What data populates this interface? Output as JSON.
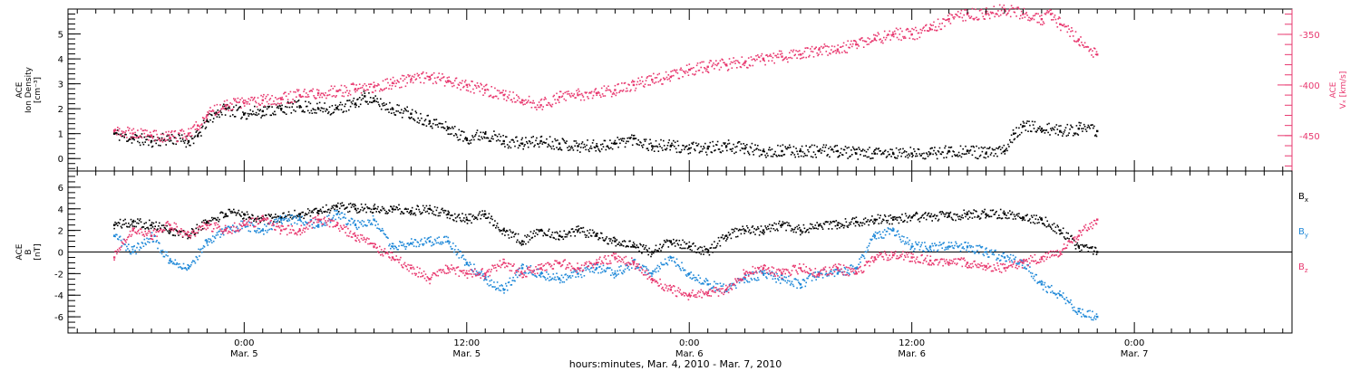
{
  "colors": {
    "density": "#000000",
    "vx": "#e8386f",
    "bx": "#000000",
    "by": "#1e88d8",
    "bz": "#e8386f",
    "axis": "#000000"
  },
  "chart_data": [
    {
      "type": "scatter",
      "ylabel_lines": [
        "ACE",
        "Ion Density",
        "[cm⁻³]"
      ],
      "ylim": [
        -0.5,
        6
      ],
      "yticks": [
        0,
        1,
        2,
        3,
        4,
        5
      ],
      "right_axis": {
        "label_lines": [
          "ACE",
          "Vₓ [km/s]"
        ],
        "ylim": [
          -325,
          -485
        ],
        "yticks": [
          -350,
          -400,
          -450
        ]
      },
      "series": [
        {
          "key": "density",
          "x": [
            -7.0,
            -6.0,
            -5.0,
            -4.0,
            -3.0,
            -2.5,
            -2.0,
            -1.5,
            -1.0,
            0.0,
            1.0,
            2.0,
            3.0,
            4.0,
            5.0,
            6.0,
            6.5,
            7.0,
            8.0,
            9.0,
            10.0,
            11.0,
            12.0,
            13.0,
            14.0,
            15.0,
            16.0,
            17.0,
            18.0,
            19.0,
            20.0,
            21.0,
            22.0,
            23.0,
            24.0,
            25.0,
            26.0,
            27.0,
            28.0,
            29.0,
            30.0,
            31.0,
            32.0,
            33.0,
            34.0,
            35.0,
            36.0,
            37.0,
            38.0,
            39.0,
            40.0,
            41.0,
            41.5,
            42.0,
            43.0,
            44.0,
            45.0,
            46.0
          ],
          "y": [
            1.0,
            0.8,
            0.7,
            0.8,
            0.7,
            0.9,
            1.5,
            1.8,
            2.0,
            1.8,
            1.9,
            2.0,
            2.1,
            2.0,
            2.0,
            2.2,
            2.5,
            2.3,
            2.0,
            1.8,
            1.5,
            1.2,
            0.8,
            1.0,
            0.7,
            0.6,
            0.7,
            0.6,
            0.5,
            0.5,
            0.6,
            0.8,
            0.5,
            0.5,
            0.4,
            0.4,
            0.5,
            0.4,
            0.3,
            0.3,
            0.3,
            0.3,
            0.3,
            0.2,
            0.2,
            0.2,
            0.2,
            0.2,
            0.3,
            0.3,
            0.2,
            0.3,
            1.0,
            1.3,
            1.2,
            1.1,
            1.2,
            1.1
          ]
        },
        {
          "key": "vx",
          "axis": "right",
          "x": [
            -7.0,
            -6.0,
            -5.0,
            -4.0,
            -3.0,
            -2.5,
            -2.0,
            -1.0,
            0.0,
            1.0,
            2.0,
            3.0,
            4.0,
            5.0,
            6.0,
            7.0,
            8.0,
            9.0,
            10.0,
            11.0,
            12.0,
            13.0,
            14.0,
            15.0,
            16.0,
            17.0,
            18.0,
            19.0,
            20.0,
            21.0,
            22.0,
            23.0,
            24.0,
            25.0,
            26.0,
            27.0,
            28.0,
            29.0,
            30.0,
            31.0,
            32.0,
            33.0,
            34.0,
            35.0,
            36.0,
            37.0,
            38.0,
            39.0,
            40.0,
            41.0,
            42.0,
            43.0,
            43.5,
            44.0,
            45.0,
            46.0
          ],
          "y": [
            -445,
            -448,
            -450,
            -452,
            -448,
            -440,
            -430,
            -420,
            -418,
            -415,
            -414,
            -410,
            -408,
            -406,
            -404,
            -402,
            -398,
            -395,
            -392,
            -396,
            -400,
            -405,
            -410,
            -415,
            -420,
            -412,
            -410,
            -408,
            -405,
            -400,
            -395,
            -392,
            -385,
            -382,
            -380,
            -378,
            -375,
            -372,
            -370,
            -365,
            -365,
            -360,
            -355,
            -350,
            -350,
            -345,
            -335,
            -330,
            -330,
            -325,
            -330,
            -335,
            -330,
            -340,
            -355,
            -370
          ]
        }
      ]
    },
    {
      "type": "scatter",
      "ylabel_lines": [
        "ACE",
        "B",
        "[nT]"
      ],
      "ylim": [
        -7.5,
        7.5
      ],
      "yticks": [
        6,
        4,
        2,
        0,
        -2,
        -4,
        -6
      ],
      "legend": [
        "Bₓ",
        "Bᵧ",
        "Bₓ"
      ],
      "legend_labels": [
        {
          "base": "B",
          "sub": "x"
        },
        {
          "base": "B",
          "sub": "y"
        },
        {
          "base": "B",
          "sub": "z"
        }
      ],
      "series": [
        {
          "key": "bx",
          "x": [
            -7.0,
            -6.0,
            -5.0,
            -4.0,
            -3.0,
            -2.0,
            -1.0,
            0.0,
            1.0,
            2.0,
            3.0,
            4.0,
            5.0,
            6.0,
            7.0,
            8.0,
            9.0,
            10.0,
            11.0,
            12.0,
            13.0,
            14.0,
            15.0,
            16.0,
            17.0,
            18.0,
            19.0,
            20.0,
            21.0,
            22.0,
            23.0,
            24.0,
            25.0,
            26.0,
            27.0,
            28.0,
            29.0,
            30.0,
            31.0,
            32.0,
            33.0,
            34.0,
            35.0,
            36.0,
            37.0,
            38.0,
            39.0,
            40.0,
            41.0,
            42.0,
            43.0,
            44.0,
            45.0,
            46.0
          ],
          "y": [
            2.5,
            2.8,
            2.5,
            2.0,
            1.5,
            2.8,
            3.5,
            3.5,
            3.0,
            3.2,
            3.5,
            3.8,
            4.2,
            4.0,
            4.0,
            4.0,
            3.8,
            4.0,
            3.5,
            3.0,
            3.5,
            2.0,
            1.0,
            2.0,
            1.5,
            2.0,
            1.5,
            1.0,
            0.5,
            0.0,
            1.0,
            0.5,
            0.0,
            1.5,
            2.0,
            2.0,
            2.5,
            2.0,
            2.5,
            2.5,
            2.8,
            3.0,
            3.0,
            3.2,
            3.3,
            3.3,
            3.5,
            3.5,
            3.5,
            3.2,
            3.0,
            2.0,
            0.5,
            0.0
          ]
        },
        {
          "key": "by",
          "x": [
            -7.0,
            -6.0,
            -5.0,
            -4.0,
            -3.0,
            -2.0,
            -1.0,
            0.0,
            1.0,
            2.0,
            3.0,
            4.0,
            5.0,
            6.0,
            7.0,
            8.0,
            9.0,
            10.0,
            11.0,
            12.0,
            13.0,
            14.0,
            15.0,
            16.0,
            17.0,
            18.0,
            19.0,
            20.0,
            21.0,
            22.0,
            23.0,
            24.0,
            25.0,
            26.0,
            27.0,
            28.0,
            29.0,
            30.0,
            31.0,
            32.0,
            33.0,
            34.0,
            35.0,
            36.0,
            37.0,
            38.0,
            39.0,
            40.0,
            41.0,
            42.0,
            43.0,
            44.0,
            45.0,
            46.0
          ],
          "y": [
            1.5,
            0.0,
            1.5,
            -0.8,
            -1.5,
            1.0,
            2.0,
            2.5,
            2.0,
            3.0,
            3.0,
            2.5,
            3.5,
            2.5,
            3.0,
            0.5,
            0.8,
            1.0,
            1.0,
            -1.0,
            -2.5,
            -3.5,
            -1.5,
            -2.0,
            -2.5,
            -2.0,
            -1.5,
            -2.0,
            -1.0,
            -2.0,
            -0.5,
            -2.0,
            -3.0,
            -3.5,
            -2.5,
            -2.0,
            -2.5,
            -3.0,
            -2.0,
            -2.0,
            -1.5,
            1.5,
            2.0,
            0.5,
            0.5,
            0.5,
            0.5,
            0.0,
            -0.5,
            -1.0,
            -3.0,
            -4.0,
            -5.5,
            -6.0
          ]
        },
        {
          "key": "bz",
          "x": [
            -7.0,
            -6.0,
            -5.0,
            -4.0,
            -3.0,
            -2.0,
            -1.0,
            0.0,
            1.0,
            2.0,
            3.0,
            4.0,
            5.0,
            6.0,
            7.0,
            8.0,
            9.0,
            10.0,
            11.0,
            12.0,
            13.0,
            14.0,
            15.0,
            16.0,
            17.0,
            18.0,
            19.0,
            20.0,
            21.0,
            22.0,
            23.0,
            24.0,
            25.0,
            26.0,
            27.0,
            28.0,
            29.0,
            30.0,
            31.0,
            32.0,
            33.0,
            34.0,
            35.0,
            36.0,
            37.0,
            38.0,
            39.0,
            40.0,
            41.0,
            42.0,
            43.0,
            44.0,
            45.0,
            46.0
          ],
          "y": [
            -0.5,
            2.0,
            1.5,
            2.5,
            1.5,
            2.5,
            2.0,
            2.5,
            3.0,
            2.0,
            2.0,
            3.0,
            2.5,
            1.5,
            0.5,
            -0.5,
            -1.5,
            -2.5,
            -1.5,
            -2.0,
            -2.0,
            -1.0,
            -2.0,
            -1.5,
            -1.0,
            -1.5,
            -1.0,
            -0.5,
            -1.0,
            -2.5,
            -3.5,
            -4.0,
            -3.8,
            -3.5,
            -2.0,
            -1.5,
            -2.0,
            -1.5,
            -2.0,
            -1.5,
            -2.0,
            -0.5,
            -0.3,
            -0.5,
            -0.8,
            -1.0,
            -1.0,
            -1.3,
            -1.5,
            -1.0,
            -0.5,
            0.0,
            1.5,
            3.0
          ]
        }
      ]
    }
  ],
  "x_axis": {
    "xlim": [
      -9.5,
      56.5
    ],
    "major_ticks": [
      0,
      12,
      24,
      36,
      48
    ],
    "tick_labels": [
      {
        "time": "0:00",
        "date": "Mar. 5"
      },
      {
        "time": "12:00",
        "date": "Mar. 5"
      },
      {
        "time": "0:00",
        "date": "Mar. 6"
      },
      {
        "time": "12:00",
        "date": "Mar. 6"
      },
      {
        "time": "0:00",
        "date": "Mar. 7"
      }
    ],
    "label": "hours:minutes, Mar.  4, 2010 - Mar.  7, 2010"
  }
}
